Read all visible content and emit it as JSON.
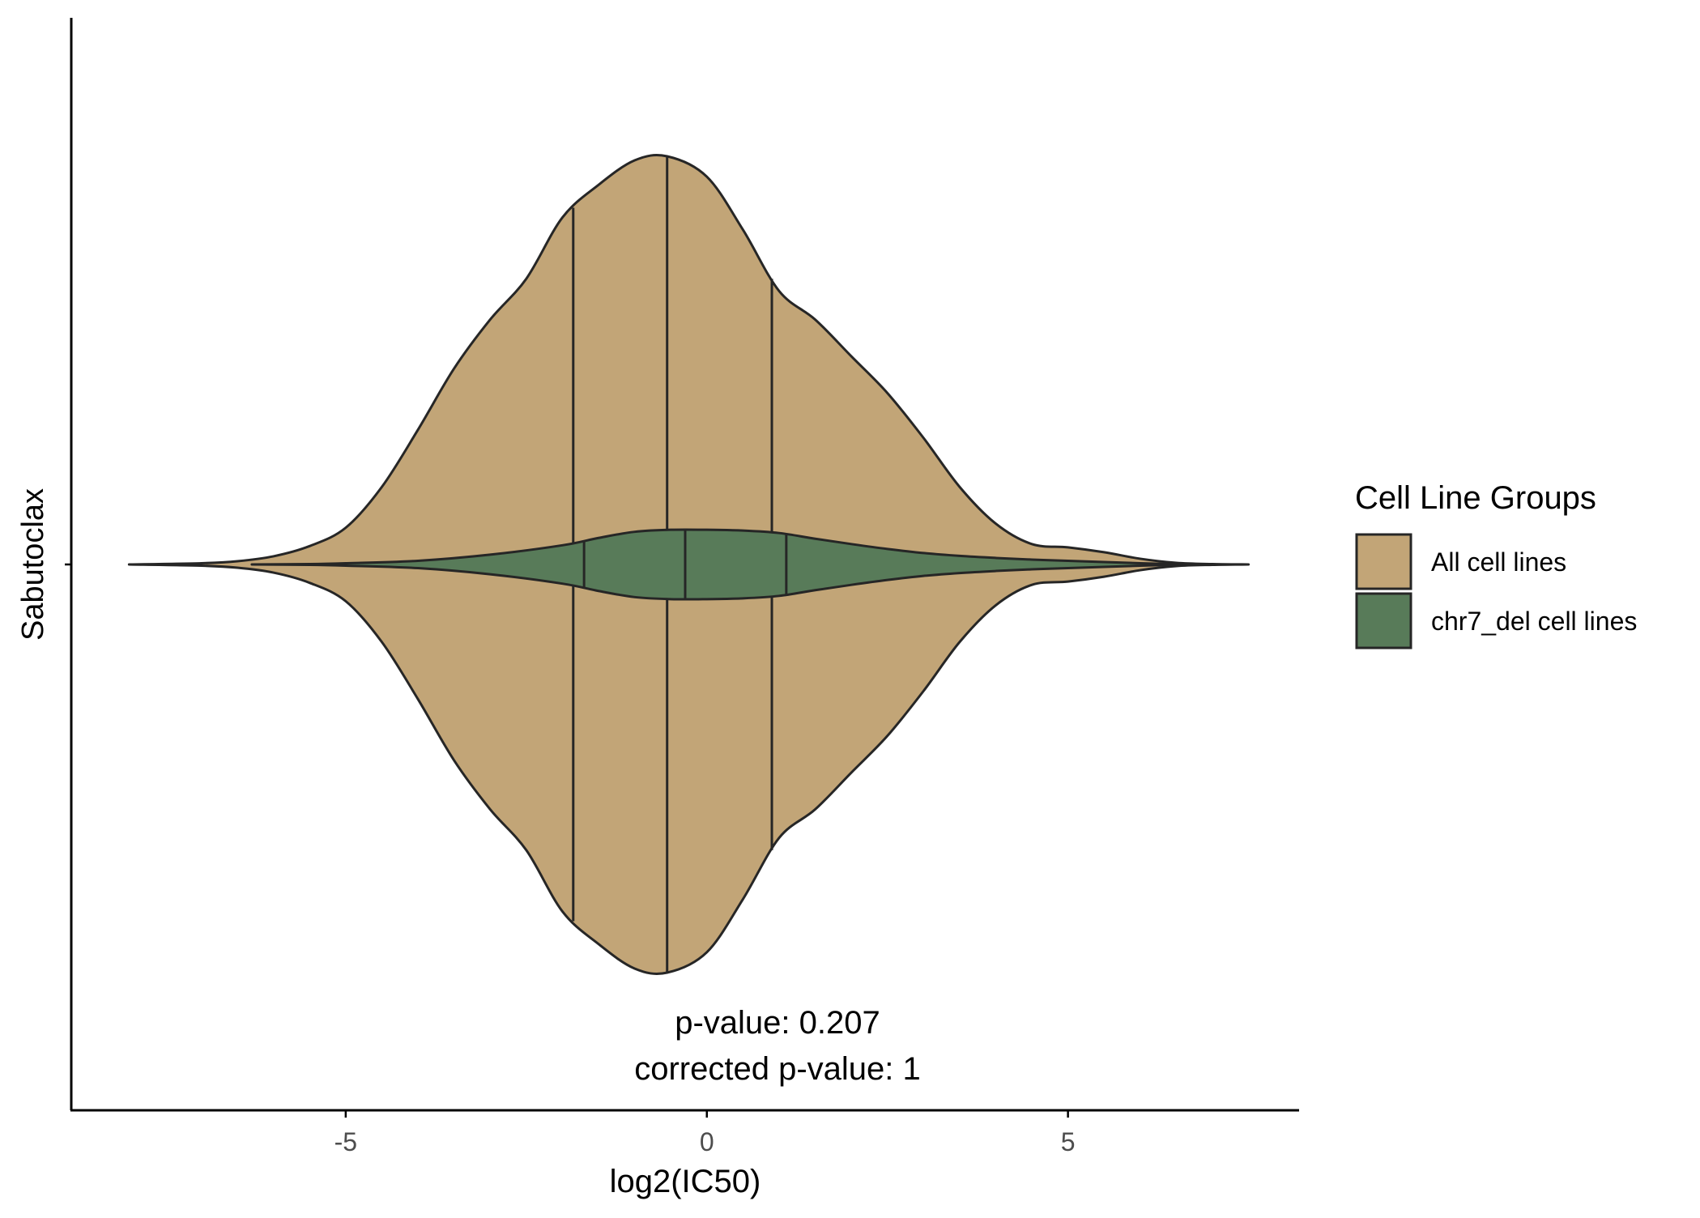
{
  "chart_data": {
    "type": "violin",
    "orientation": "horizontal",
    "category": "Sabutoclax",
    "xlabel": "log2(IC50)",
    "ylabel": "Sabutoclax",
    "xticks": [
      -5,
      0,
      5
    ],
    "xtick_labels": [
      "-5",
      "0",
      "5"
    ],
    "xlim": [
      -8.8,
      8.2
    ],
    "grid": false,
    "legend": {
      "title": "Cell Line Groups",
      "position": "right",
      "items": [
        {
          "label": "All cell lines",
          "color": "#c2a577"
        },
        {
          "label": "chr7_del cell lines",
          "color": "#587b59"
        }
      ]
    },
    "series": [
      {
        "name": "All cell lines",
        "color": "#c2a577",
        "quantiles": {
          "q25": -1.85,
          "median": -0.55,
          "q75": 0.9
        },
        "density": [
          [
            -8.0,
            0.0
          ],
          [
            -7.0,
            0.003
          ],
          [
            -6.5,
            0.008
          ],
          [
            -6.0,
            0.02
          ],
          [
            -5.5,
            0.045
          ],
          [
            -5.0,
            0.09
          ],
          [
            -4.5,
            0.19
          ],
          [
            -4.0,
            0.33
          ],
          [
            -3.5,
            0.48
          ],
          [
            -3.0,
            0.6
          ],
          [
            -2.5,
            0.7
          ],
          [
            -2.0,
            0.85
          ],
          [
            -1.5,
            0.93
          ],
          [
            -1.0,
            0.99
          ],
          [
            -0.55,
            1.0
          ],
          [
            0.0,
            0.95
          ],
          [
            0.5,
            0.82
          ],
          [
            1.0,
            0.67
          ],
          [
            1.5,
            0.6
          ],
          [
            2.0,
            0.51
          ],
          [
            2.5,
            0.42
          ],
          [
            3.0,
            0.31
          ],
          [
            3.5,
            0.19
          ],
          [
            4.0,
            0.1
          ],
          [
            4.5,
            0.05
          ],
          [
            5.0,
            0.042
          ],
          [
            5.5,
            0.03
          ],
          [
            6.0,
            0.014
          ],
          [
            6.5,
            0.004
          ],
          [
            7.0,
            0.001
          ],
          [
            7.5,
            0.0
          ]
        ]
      },
      {
        "name": "chr7_del cell lines",
        "color": "#587b59",
        "quantiles": {
          "q25": -1.7,
          "median": -0.3,
          "q75": 1.1
        },
        "density": [
          [
            -6.3,
            0.0
          ],
          [
            -5.5,
            0.001
          ],
          [
            -5.0,
            0.003
          ],
          [
            -4.0,
            0.009
          ],
          [
            -3.0,
            0.024
          ],
          [
            -2.0,
            0.047
          ],
          [
            -1.5,
            0.065
          ],
          [
            -1.0,
            0.08
          ],
          [
            -0.5,
            0.085
          ],
          [
            0.0,
            0.085
          ],
          [
            0.5,
            0.083
          ],
          [
            1.0,
            0.077
          ],
          [
            1.5,
            0.063
          ],
          [
            2.0,
            0.05
          ],
          [
            2.5,
            0.038
          ],
          [
            3.0,
            0.028
          ],
          [
            3.5,
            0.021
          ],
          [
            4.0,
            0.016
          ],
          [
            4.5,
            0.012
          ],
          [
            5.0,
            0.009
          ],
          [
            5.5,
            0.006
          ],
          [
            6.0,
            0.003
          ],
          [
            6.5,
            0.001
          ],
          [
            7.0,
            0.0
          ]
        ]
      }
    ],
    "annotations": [
      "p-value: 0.207",
      "corrected p-value: 1"
    ]
  },
  "colors": {
    "all_fill": "#c2a577",
    "chr7_fill": "#587b59",
    "outline": "#262626",
    "axis": "#000000",
    "tick_label": "#4d4d4d"
  }
}
